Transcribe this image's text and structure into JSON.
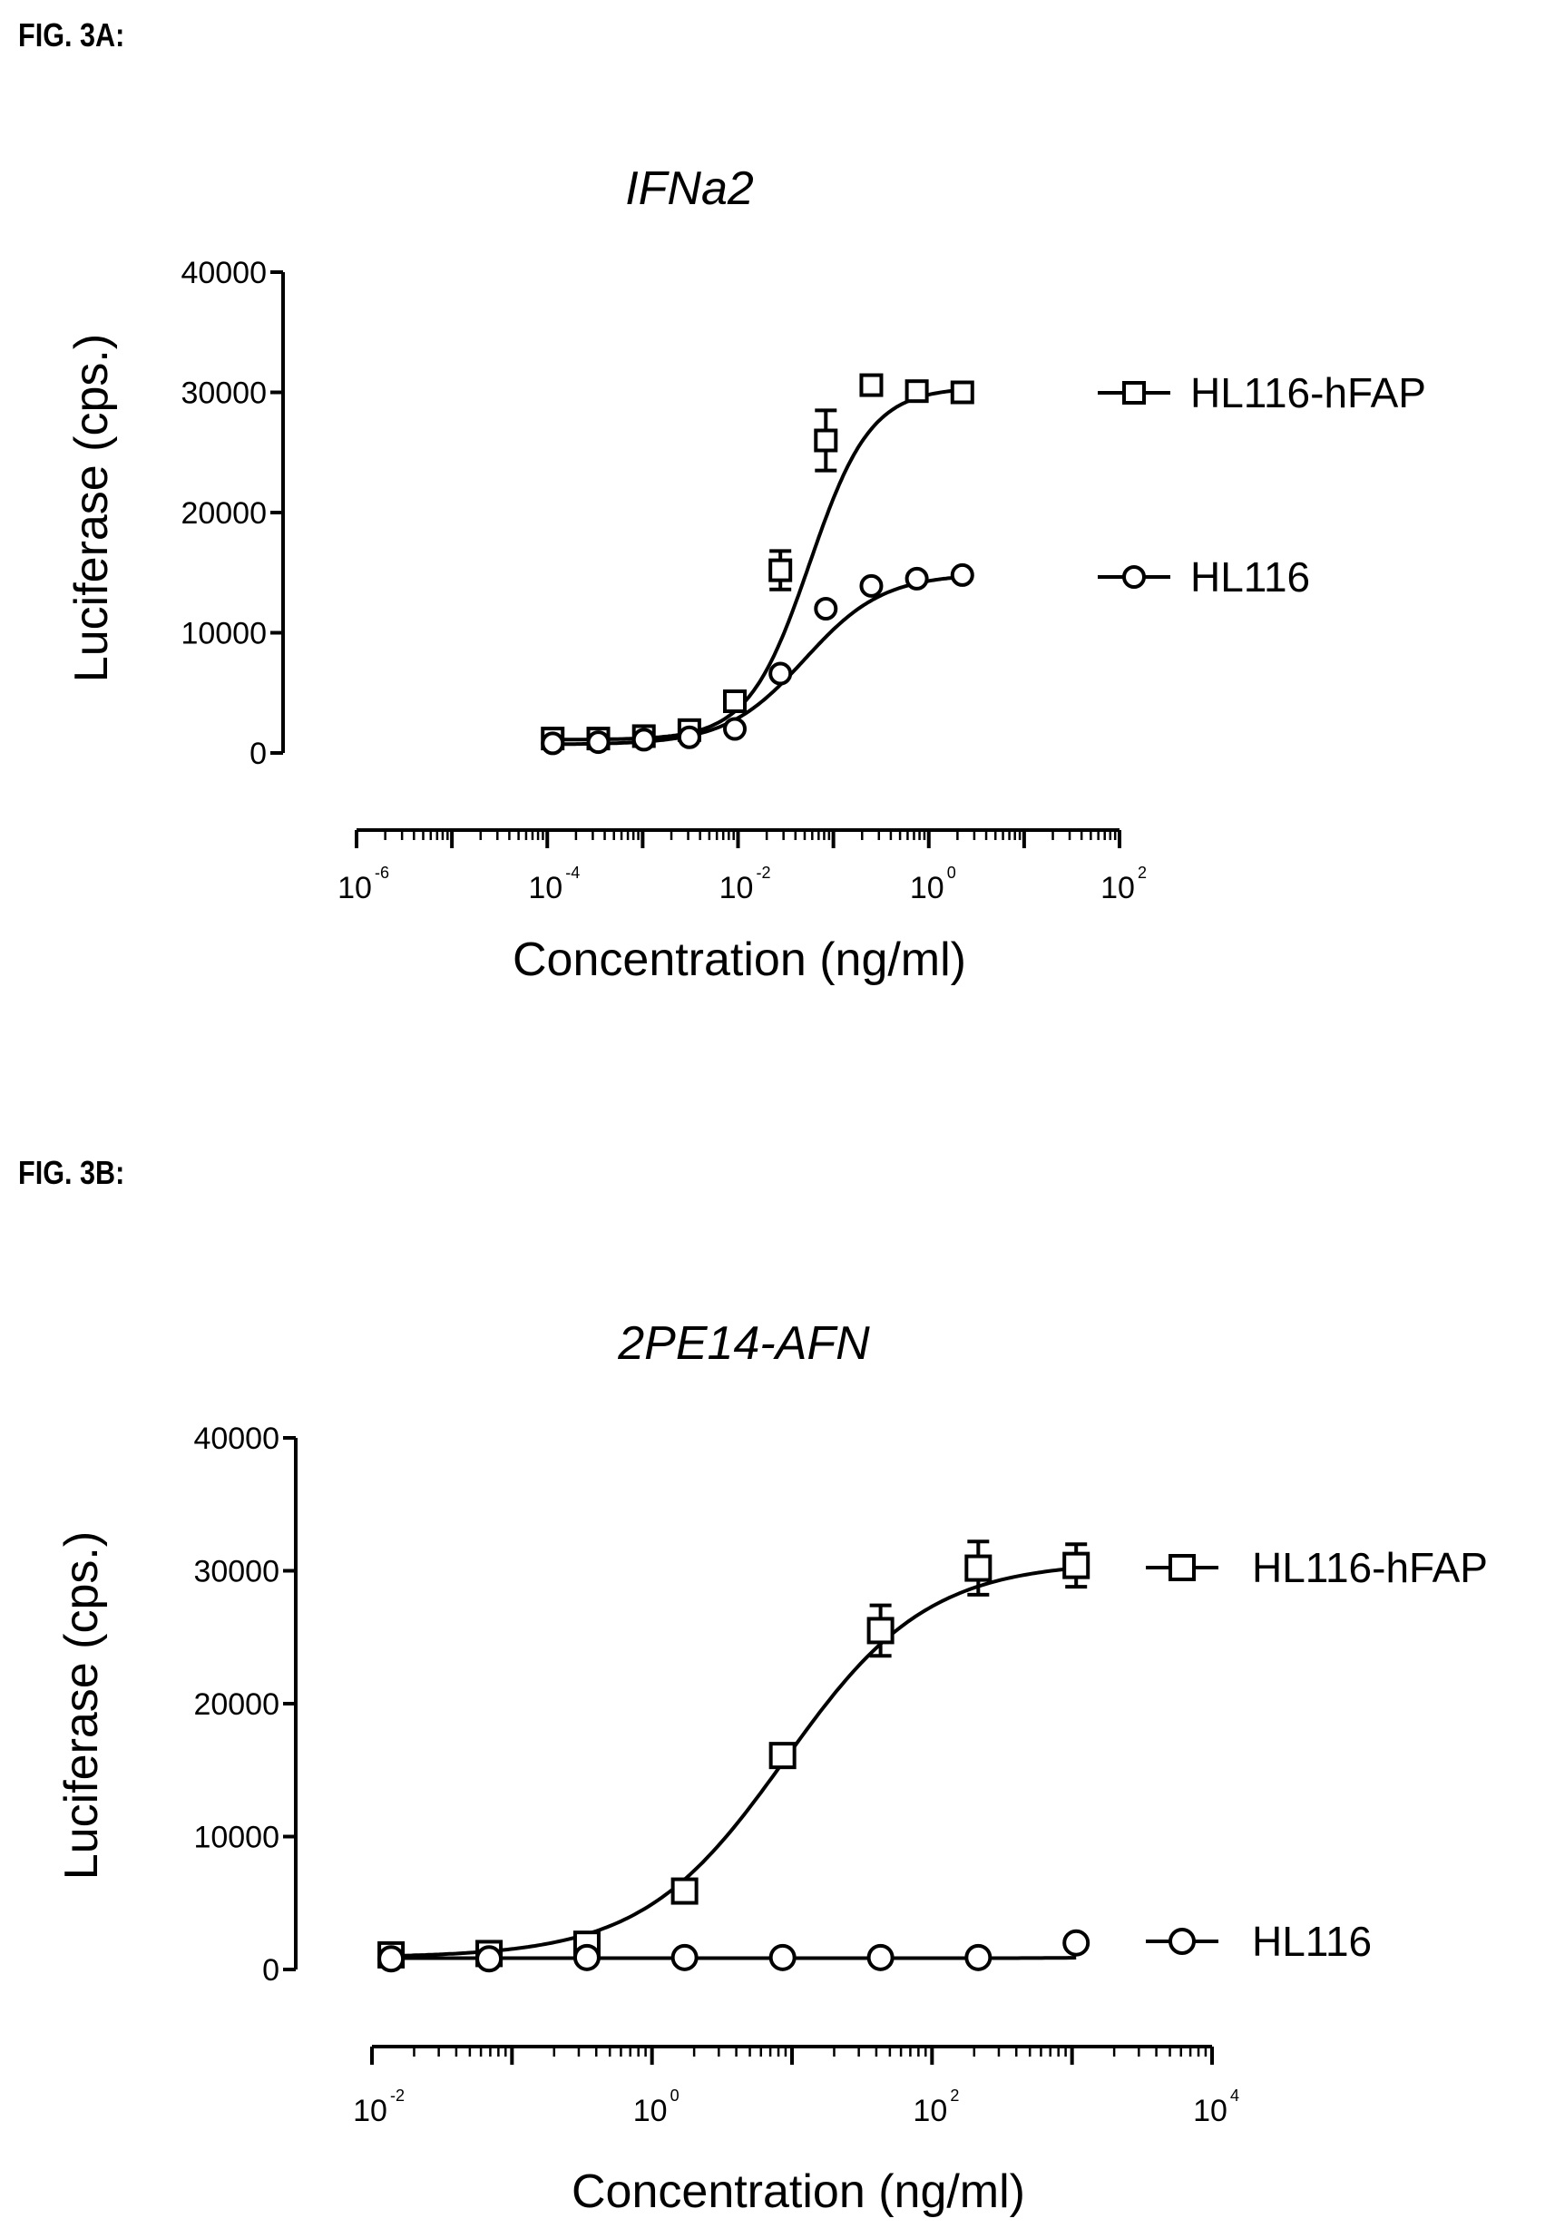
{
  "figures": {
    "a_label": "FIG. 3A:",
    "b_label": "FIG. 3B:"
  },
  "chart_data": [
    {
      "type": "scatter",
      "title": "IFNa2",
      "xlabel": "Concentration (ng/ml)",
      "ylabel": "Luciferase (cps.)",
      "xscale": "log",
      "xlim": [
        1e-06,
        100
      ],
      "ylim": [
        0,
        40000
      ],
      "yticks": [
        "0",
        "10000",
        "20000",
        "30000",
        "40000"
      ],
      "xticks": [
        {
          "base": "10",
          "exp": "-6"
        },
        {
          "base": "10",
          "exp": "-4"
        },
        {
          "base": "10",
          "exp": "-2"
        },
        {
          "base": "10",
          "exp": "0"
        },
        {
          "base": "10",
          "exp": "2"
        }
      ],
      "series": [
        {
          "name": "HL116-hFAP",
          "marker": "square",
          "x": [
            0.000114,
            0.000343,
            0.00103,
            0.00309,
            0.00926,
            0.0278,
            0.0833,
            0.25,
            0.75,
            2.25
          ],
          "y": [
            1200,
            1200,
            1400,
            1900,
            4300,
            15200,
            26000,
            30600,
            30100,
            30000
          ],
          "err": [
            0,
            0,
            0,
            0,
            0,
            1600,
            2500,
            0,
            0,
            800
          ]
        },
        {
          "name": "HL116",
          "marker": "circle",
          "x": [
            0.000114,
            0.000343,
            0.00103,
            0.00309,
            0.00926,
            0.0278,
            0.0833,
            0.25,
            0.75,
            2.25
          ],
          "y": [
            800,
            900,
            1100,
            1300,
            2000,
            6600,
            12000,
            13900,
            14500,
            14800
          ],
          "err": [
            0,
            0,
            0,
            0,
            0,
            0,
            0,
            0,
            0,
            0
          ]
        }
      ],
      "fits": [
        {
          "series": "HL116-hFAP",
          "bottom": 1100,
          "top": 30400,
          "logec50": -1.25,
          "hill": 1.35
        },
        {
          "series": "HL116",
          "bottom": 700,
          "top": 14900,
          "logec50": -1.3,
          "hill": 1.05
        }
      ]
    },
    {
      "type": "scatter",
      "title": "2PE14-AFN",
      "xlabel": "Concentration (ng/ml)",
      "ylabel": "Luciferase (cps.)",
      "xscale": "log",
      "xlim": [
        0.01,
        10000
      ],
      "ylim": [
        0,
        40000
      ],
      "yticks": [
        "0",
        "10000",
        "20000",
        "30000",
        "40000"
      ],
      "xticks": [
        {
          "base": "10",
          "exp": "-2"
        },
        {
          "base": "10",
          "exp": "0"
        },
        {
          "base": "10",
          "exp": "2"
        },
        {
          "base": "10",
          "exp": "4"
        }
      ],
      "series": [
        {
          "name": "HL116-hFAP",
          "marker": "square",
          "x": [
            0.0137,
            0.0686,
            0.343,
            1.71,
            8.57,
            42.9,
            214,
            1070
          ],
          "y": [
            1100,
            1200,
            1900,
            5900,
            16100,
            25500,
            30200,
            30400
          ],
          "err": [
            0,
            0,
            0,
            0,
            0,
            1900,
            2000,
            1600
          ]
        },
        {
          "name": "HL116",
          "marker": "circle",
          "x": [
            0.0137,
            0.0686,
            0.343,
            1.71,
            8.57,
            42.9,
            214,
            1070
          ],
          "y": [
            800,
            800,
            900,
            900,
            900,
            900,
            900,
            2000
          ],
          "err": [
            0,
            0,
            0,
            0,
            0,
            0,
            0,
            0
          ]
        }
      ],
      "fits": [
        {
          "series": "HL116-hFAP",
          "bottom": 900,
          "top": 30700,
          "logec50": 0.95,
          "hill": 0.85
        },
        {
          "series": "HL116",
          "bottom": 850,
          "top": 8000,
          "logec50": 4.3,
          "hill": 1.8
        }
      ]
    }
  ]
}
